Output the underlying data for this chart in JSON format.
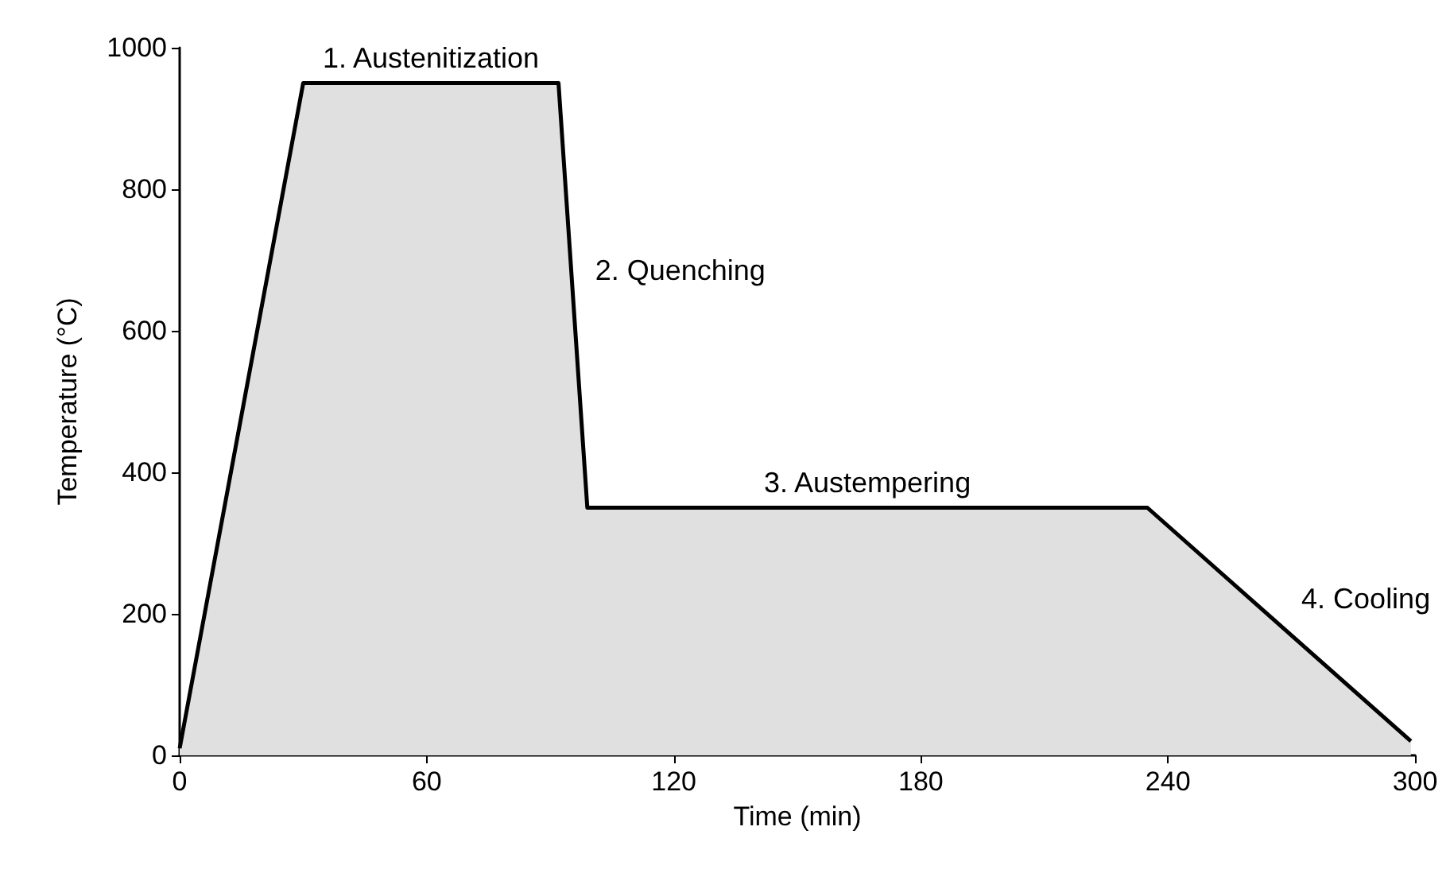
{
  "chart_data": {
    "type": "area",
    "xlabel": "Time (min)",
    "ylabel": "Temperature (°C)",
    "x": [
      0,
      30,
      92,
      99,
      235,
      299
    ],
    "series": [
      {
        "color": "#000000",
        "values": [
          10,
          950,
          950,
          350,
          350,
          20
        ]
      }
    ],
    "xlim": [
      0,
      300
    ],
    "xticks": [
      0,
      60,
      120,
      180,
      240,
      300
    ],
    "ylim": [
      0,
      1000
    ],
    "yticks": [
      0,
      200,
      400,
      600,
      800,
      1000
    ],
    "grid": false,
    "marker": "none",
    "line_style": "solid",
    "annotations": [
      "1. Austenitization",
      "2. Quenching",
      "3. Austempering",
      "4. Cooling"
    ]
  }
}
